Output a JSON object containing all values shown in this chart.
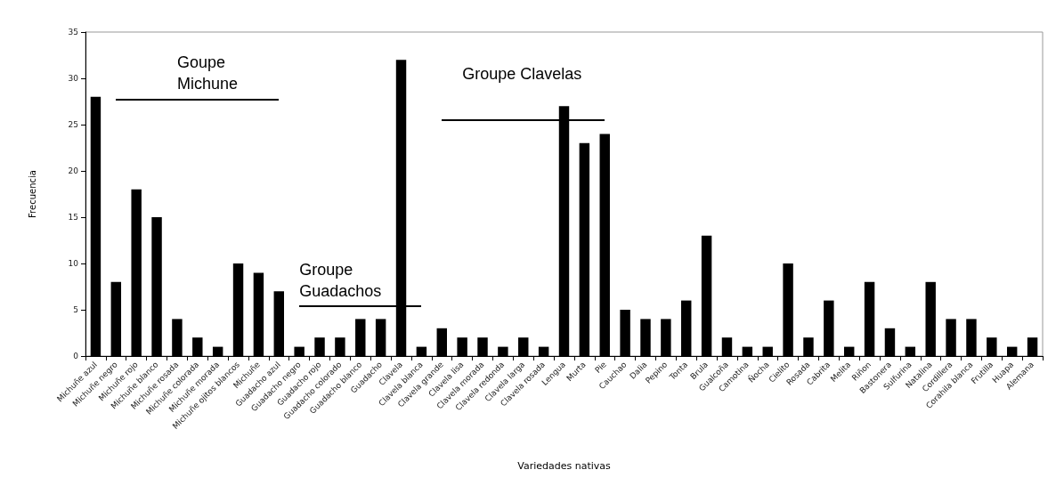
{
  "chart_data": {
    "type": "bar",
    "xlabel": "Variedades nativas",
    "ylabel": "Frecuencia",
    "categories": [
      "Michuñe azul",
      "Michuñe negro",
      "Michuñe rojo",
      "Michuñe blanco",
      "Michuñe rosada",
      "Michuñe colorada",
      "Michuñe morada",
      "Michuñe ojitos blancos",
      "Michuñe",
      "Guadacho azul",
      "Guadacho negro",
      "Guadacho rojo",
      "Guadacho colorado",
      "Guadacho blanco",
      "Guadacho",
      "Clavela",
      "Clavela blanca",
      "Clavela grande",
      "Clavela lisa",
      "Clavela morada",
      "Clavela redonda",
      "Clavela larga",
      "Clavela rosada",
      "Lengua",
      "Murta",
      "Pie",
      "Cauchao",
      "Dalia",
      "Pepino",
      "Tonta",
      "Brula",
      "Gualcoña",
      "Camotina",
      "Ñocha",
      "Cielito",
      "Rosada",
      "Cabrita",
      "Melita",
      "Riñon",
      "Bastonera",
      "Sulfurina",
      "Natalina",
      "Cordillera",
      "Corahila blanca",
      "Frutilla",
      "Huapa",
      "Alemana"
    ],
    "values": [
      28,
      8,
      18,
      15,
      4,
      2,
      1,
      10,
      9,
      7,
      1,
      2,
      2,
      4,
      4,
      32,
      1,
      3,
      2,
      2,
      1,
      2,
      1,
      27,
      23,
      24,
      5,
      4,
      4,
      6,
      13,
      2,
      1,
      1,
      10,
      2,
      6,
      1,
      8,
      3,
      1,
      8,
      4,
      4,
      2,
      1,
      2
    ],
    "color": "#000000",
    "ylim": [
      0,
      35
    ],
    "yticks": [
      0,
      5,
      10,
      15,
      20,
      25,
      30,
      35
    ],
    "grid": false,
    "annotations": [
      "Goupe Michune",
      "Groupe Guadachos",
      "Groupe Clavelas"
    ]
  }
}
